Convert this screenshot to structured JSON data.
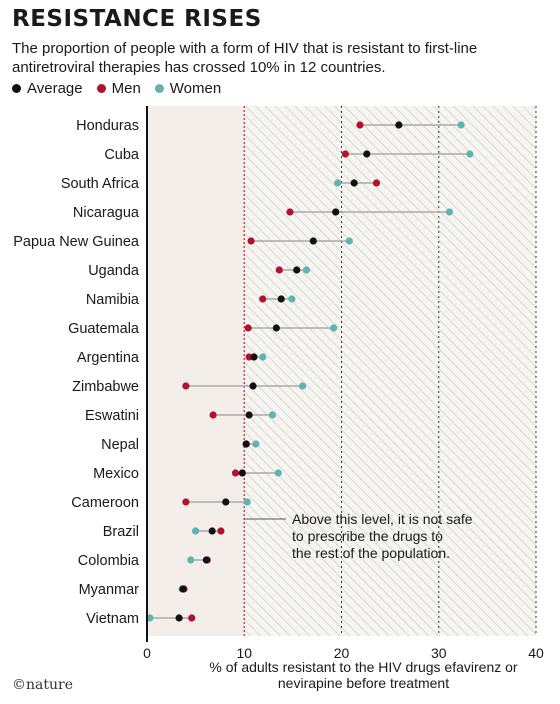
{
  "header": {
    "title": "RESISTANCE RISES",
    "subtitle": "The proportion of people with a form of HIV that is resistant to first-line antiretroviral therapies has crossed 10% in 12 countries."
  },
  "footer": {
    "credit": "©nature"
  },
  "colors": {
    "average": "#111111",
    "men": "#b0122d",
    "women": "#5fb3b3",
    "connector": "#aaaaaa",
    "threshold": "#d62a2a",
    "left_bg": "#f3eeea"
  },
  "chart_data": {
    "type": "dot-range",
    "legend": [
      {
        "key": "average",
        "label": "Average"
      },
      {
        "key": "men",
        "label": "Men"
      },
      {
        "key": "women",
        "label": "Women"
      }
    ],
    "xlabel_lines": [
      "% of adults resistant to the HIV drugs efavirenz or",
      "nevirapine before treatment"
    ],
    "xlim": [
      0,
      40
    ],
    "xticks": [
      0,
      10,
      20,
      30,
      40
    ],
    "threshold": 10,
    "annotation_lines": [
      "Above this level, it is not safe",
      "to prescribe the drugs to",
      "the rest of the population."
    ],
    "rows": [
      {
        "country": "Honduras",
        "men": 21.9,
        "average": 25.9,
        "women": 32.3
      },
      {
        "country": "Cuba",
        "men": 20.4,
        "average": 22.6,
        "women": 33.2
      },
      {
        "country": "South Africa",
        "men": 23.6,
        "average": 21.3,
        "women": 19.6
      },
      {
        "country": "Nicaragua",
        "men": 14.7,
        "average": 19.4,
        "women": 31.1
      },
      {
        "country": "Papua New Guinea",
        "men": 10.7,
        "average": 17.1,
        "women": 20.8
      },
      {
        "country": "Uganda",
        "men": 13.6,
        "average": 15.4,
        "women": 16.4
      },
      {
        "country": "Namibia",
        "men": 11.9,
        "average": 13.8,
        "women": 14.9
      },
      {
        "country": "Guatemala",
        "men": 10.4,
        "average": 13.3,
        "women": 19.2
      },
      {
        "country": "Argentina",
        "men": 10.5,
        "average": 11.0,
        "women": 11.9
      },
      {
        "country": "Zimbabwe",
        "men": 4.0,
        "average": 10.9,
        "women": 16.0
      },
      {
        "country": "Eswatini",
        "men": 6.8,
        "average": 10.5,
        "women": 12.9
      },
      {
        "country": "Nepal",
        "men": 10.2,
        "average": 10.2,
        "women": 11.2
      },
      {
        "country": "Mexico",
        "men": 9.1,
        "average": 9.8,
        "women": 13.5
      },
      {
        "country": "Cameroon",
        "men": 4.0,
        "average": 8.1,
        "women": 10.3
      },
      {
        "country": "Brazil",
        "men": 7.6,
        "average": 6.7,
        "women": 5.0
      },
      {
        "country": "Colombia",
        "men": 6.2,
        "average": 6.1,
        "women": 4.5
      },
      {
        "country": "Myanmar",
        "men": 3.8,
        "average": 3.7,
        "women": 3.6
      },
      {
        "country": "Vietnam",
        "men": 4.6,
        "average": 3.3,
        "women": 0.3
      }
    ]
  }
}
